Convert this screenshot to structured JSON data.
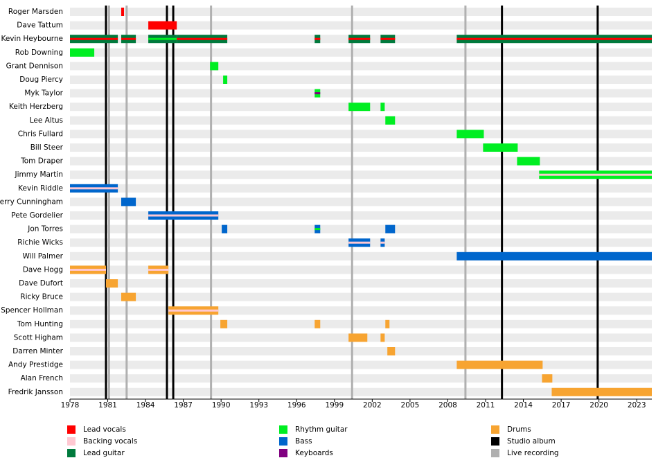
{
  "chart_data": {
    "type": "timeline",
    "xlim": [
      1978,
      2024.2
    ],
    "xticks": [
      1978,
      1981,
      1984,
      1987,
      1990,
      1993,
      1996,
      1999,
      2002,
      2005,
      2008,
      2011,
      2014,
      2017,
      2020,
      2023
    ],
    "roles": [
      {
        "name": "Lead vocals",
        "color": "#ff0000"
      },
      {
        "name": "Backing vocals",
        "color": "#ffc8d2"
      },
      {
        "name": "Lead guitar",
        "color": "#007a3d"
      },
      {
        "name": "Rhythm guitar",
        "color": "#00ee22"
      },
      {
        "name": "Bass",
        "color": "#0066cc"
      },
      {
        "name": "Keyboards",
        "color": "#800080"
      },
      {
        "name": "Drums",
        "color": "#f7a431"
      }
    ],
    "markers": [
      {
        "name": "Studio album",
        "color": "#000000",
        "x": [
          1980.86,
          1985.7,
          1986.2,
          2012.3,
          2019.9
        ]
      },
      {
        "name": "Live recording",
        "color": "#b0b0b0",
        "x": [
          1981.1,
          1982.5,
          1989.2,
          2000.4,
          2009.4
        ]
      }
    ],
    "members": [
      {
        "name": "Roger Marsden",
        "bars": [
          {
            "roles": [
              "Lead vocals"
            ],
            "start": 1982.07,
            "end": 1982.29
          }
        ]
      },
      {
        "name": "Dave Tattum",
        "bars": [
          {
            "roles": [
              "Lead vocals"
            ],
            "start": 1984.22,
            "end": 1986.48
          }
        ]
      },
      {
        "name": "Kevin Heybourne",
        "bars": [
          {
            "roles": [
              "Lead guitar",
              "Lead vocals"
            ],
            "start": 1978,
            "end": 1981.8
          },
          {
            "roles": [
              "Lead guitar",
              "Lead vocals"
            ],
            "start": 1982.07,
            "end": 1983.23
          },
          {
            "roles": [
              "Lead guitar",
              "Rhythm guitar"
            ],
            "start": 1984.22,
            "end": 1986.48
          },
          {
            "roles": [
              "Lead guitar",
              "Lead vocals"
            ],
            "start": 1986.48,
            "end": 1990.49
          },
          {
            "roles": [
              "Lead guitar",
              "Lead vocals"
            ],
            "start": 1997.43,
            "end": 1997.87
          },
          {
            "roles": [
              "Lead guitar",
              "Lead vocals"
            ],
            "start": 2000.12,
            "end": 2001.83
          },
          {
            "roles": [
              "Lead guitar",
              "Lead vocals"
            ],
            "start": 2002.66,
            "end": 2003.81
          },
          {
            "roles": [
              "Lead guitar",
              "Lead vocals"
            ],
            "start": 2008.71,
            "end": 2024.2
          }
        ]
      },
      {
        "name": "Rob Downing",
        "bars": [
          {
            "roles": [
              "Rhythm guitar"
            ],
            "start": 1978,
            "end": 1979.93
          }
        ]
      },
      {
        "name": "Grant Dennison",
        "bars": [
          {
            "roles": [
              "Rhythm guitar"
            ],
            "start": 1989.12,
            "end": 1989.78
          }
        ]
      },
      {
        "name": "Doug Piercy",
        "bars": [
          {
            "roles": [
              "Rhythm guitar"
            ],
            "start": 1990.16,
            "end": 1990.49
          }
        ]
      },
      {
        "name": "Myk Taylor",
        "bars": [
          {
            "roles": [
              "Rhythm guitar",
              "Keyboards"
            ],
            "start": 1997.43,
            "end": 1997.87
          }
        ]
      },
      {
        "name": "Keith Herzberg",
        "bars": [
          {
            "roles": [
              "Rhythm guitar"
            ],
            "start": 2000.12,
            "end": 2001.83
          },
          {
            "roles": [
              "Rhythm guitar"
            ],
            "start": 2002.66,
            "end": 2002.99
          }
        ]
      },
      {
        "name": "Lee Altus",
        "bars": [
          {
            "roles": [
              "Rhythm guitar"
            ],
            "start": 2003.04,
            "end": 2003.81
          }
        ]
      },
      {
        "name": "Chris Fullard",
        "bars": [
          {
            "roles": [
              "Rhythm guitar"
            ],
            "start": 2008.71,
            "end": 2010.86
          }
        ]
      },
      {
        "name": "Bill Steer",
        "bars": [
          {
            "roles": [
              "Rhythm guitar"
            ],
            "start": 2010.8,
            "end": 2013.55
          }
        ]
      },
      {
        "name": "Tom Draper",
        "bars": [
          {
            "roles": [
              "Rhythm guitar"
            ],
            "start": 2013.5,
            "end": 2015.31
          }
        ]
      },
      {
        "name": "Jimmy Martin",
        "bars": [
          {
            "roles": [
              "Rhythm guitar",
              "Backing vocals"
            ],
            "start": 2015.25,
            "end": 2024.2
          }
        ]
      },
      {
        "name": "Kevin Riddle",
        "bars": [
          {
            "roles": [
              "Bass",
              "Backing vocals"
            ],
            "start": 1978,
            "end": 1981.8
          }
        ]
      },
      {
        "name": "Jerry Cunningham",
        "bars": [
          {
            "roles": [
              "Bass"
            ],
            "start": 1982.07,
            "end": 1983.23
          }
        ]
      },
      {
        "name": "Pete Gordelier",
        "bars": [
          {
            "roles": [
              "Bass",
              "Backing vocals"
            ],
            "start": 1984.22,
            "end": 1989.78
          }
        ]
      },
      {
        "name": "Jon Torres",
        "bars": [
          {
            "roles": [
              "Bass"
            ],
            "start": 1990.05,
            "end": 1990.49
          },
          {
            "roles": [
              "Bass",
              "Rhythm guitar"
            ],
            "start": 1997.43,
            "end": 1997.87
          },
          {
            "roles": [
              "Bass"
            ],
            "start": 2003.04,
            "end": 2003.81
          }
        ]
      },
      {
        "name": "Richie Wicks",
        "bars": [
          {
            "roles": [
              "Bass",
              "Backing vocals"
            ],
            "start": 2000.12,
            "end": 2001.83
          },
          {
            "roles": [
              "Bass",
              "Backing vocals"
            ],
            "start": 2002.66,
            "end": 2002.99
          }
        ]
      },
      {
        "name": "Will Palmer",
        "bars": [
          {
            "roles": [
              "Bass"
            ],
            "start": 2008.71,
            "end": 2024.2
          }
        ]
      },
      {
        "name": "Dave Hogg",
        "bars": [
          {
            "roles": [
              "Drums",
              "Backing vocals"
            ],
            "start": 1978,
            "end": 1980.86
          },
          {
            "roles": [
              "Drums",
              "Backing vocals"
            ],
            "start": 1984.22,
            "end": 1985.82
          }
        ]
      },
      {
        "name": "Dave Dufort",
        "bars": [
          {
            "roles": [
              "Drums"
            ],
            "start": 1980.86,
            "end": 1981.8
          }
        ]
      },
      {
        "name": "Ricky Bruce",
        "bars": [
          {
            "roles": [
              "Drums"
            ],
            "start": 1982.07,
            "end": 1983.23
          }
        ]
      },
      {
        "name": "Spencer Hollman",
        "bars": [
          {
            "roles": [
              "Drums",
              "Backing vocals"
            ],
            "start": 1985.82,
            "end": 1989.78
          }
        ]
      },
      {
        "name": "Tom Hunting",
        "bars": [
          {
            "roles": [
              "Drums"
            ],
            "start": 1989.94,
            "end": 1990.49
          },
          {
            "roles": [
              "Drums"
            ],
            "start": 1997.43,
            "end": 1997.87
          },
          {
            "roles": [
              "Drums"
            ],
            "start": 2003.04,
            "end": 2003.37
          }
        ]
      },
      {
        "name": "Scott Higham",
        "bars": [
          {
            "roles": [
              "Drums"
            ],
            "start": 2000.12,
            "end": 2001.61
          },
          {
            "roles": [
              "Drums"
            ],
            "start": 2002.66,
            "end": 2002.99
          }
        ]
      },
      {
        "name": "Darren Minter",
        "bars": [
          {
            "roles": [
              "Drums"
            ],
            "start": 2003.2,
            "end": 2003.81
          }
        ]
      },
      {
        "name": "Andy Prestidge",
        "bars": [
          {
            "roles": [
              "Drums"
            ],
            "start": 2008.71,
            "end": 2015.53
          }
        ]
      },
      {
        "name": "Alan French",
        "bars": [
          {
            "roles": [
              "Drums"
            ],
            "start": 2015.48,
            "end": 2016.3
          }
        ]
      },
      {
        "name": "Fredrik Jansson",
        "bars": [
          {
            "roles": [
              "Drums"
            ],
            "start": 2016.25,
            "end": 2024.2
          }
        ]
      }
    ]
  }
}
